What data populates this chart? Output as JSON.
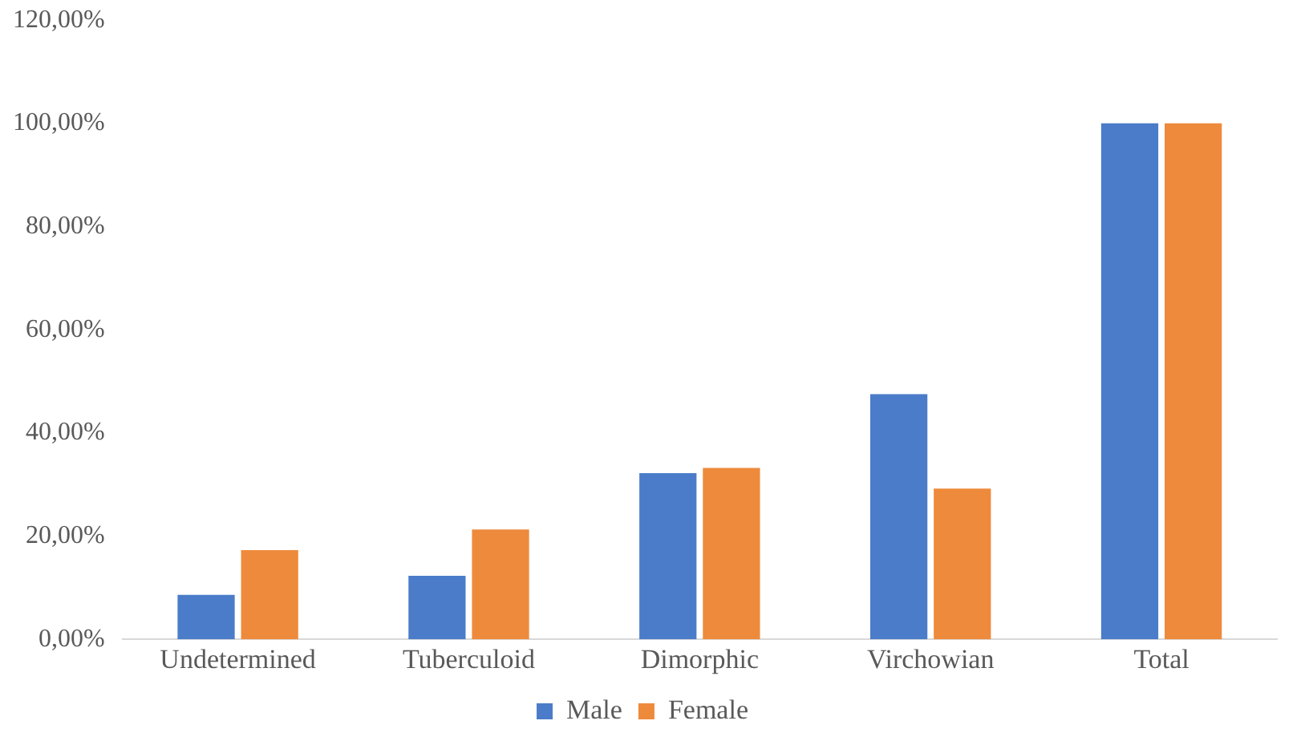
{
  "chart_data": {
    "type": "bar",
    "categories": [
      "Undetermined",
      "Tuberculoid",
      "Dimorphic",
      "Virchowian",
      "Total"
    ],
    "series": [
      {
        "name": "Male",
        "color": "#4a7cc9",
        "values": [
          8.6,
          12.3,
          32.2,
          47.5,
          100
        ]
      },
      {
        "name": "Female",
        "color": "#ee8a3c",
        "values": [
          17.3,
          21.3,
          33.2,
          29.2,
          100
        ]
      }
    ],
    "ylim": [
      0,
      120
    ],
    "yticks": [
      {
        "value": 0,
        "label": "0,00%"
      },
      {
        "value": 20,
        "label": "20,00%"
      },
      {
        "value": 40,
        "label": "40,00%"
      },
      {
        "value": 60,
        "label": "60,00%"
      },
      {
        "value": 80,
        "label": "80,00%"
      },
      {
        "value": 100,
        "label": "100,00%"
      },
      {
        "value": 120,
        "label": "120,00%"
      }
    ],
    "grid": false,
    "legend": "bottom"
  }
}
